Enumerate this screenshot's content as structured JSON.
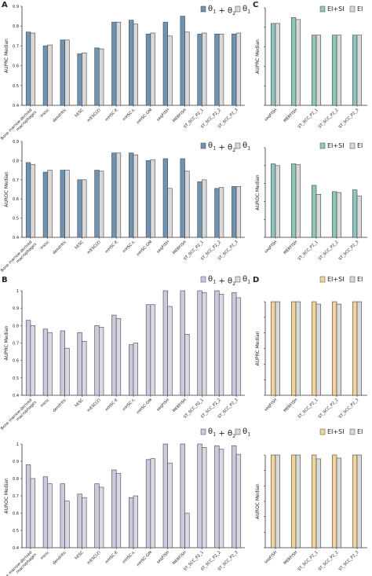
{
  "panel_labels": [
    "A",
    "B",
    "C",
    "D"
  ],
  "colors": {
    "A_dark": "#6e93b3",
    "A_light": "#d9d9d9",
    "B_dark": "#c9cade",
    "B_light": "#d9d9e6",
    "C_dark": "#8fc7bd",
    "C_light": "#d9d9d9",
    "D_dark": "#f2d49b",
    "D_light": "#d9d9d9"
  },
  "chart_data": [
    {
      "type": "bar",
      "panel": "A",
      "ylabel": "AUPRC  Median",
      "ylim": [
        0.4,
        0.9
      ],
      "yticks": [
        "0.4",
        "0.5",
        "0.6",
        "0.7",
        "0.8",
        "0.9"
      ],
      "categories": [
        "Bone marrow-derived macrophages",
        "mesc",
        "dendritic",
        "hESC",
        "mESC(2)",
        "mHSC-E",
        "mHSC-L",
        "mHSC-GM",
        "seqFISH",
        "MERFISH",
        "ST_SCC_P2_1",
        "ST_SCC_P2_2",
        "ST_SCC_P2_3"
      ],
      "series": [
        {
          "name": "θ1 + θ2",
          "values": [
            0.77,
            0.7,
            0.73,
            0.66,
            0.69,
            0.82,
            0.83,
            0.76,
            0.82,
            0.85,
            0.76,
            0.76,
            0.76
          ]
        },
        {
          "name": "θ1",
          "values": [
            0.765,
            0.705,
            0.73,
            0.665,
            0.685,
            0.82,
            0.81,
            0.765,
            0.75,
            0.77,
            0.765,
            0.76,
            0.765
          ]
        }
      ]
    },
    {
      "type": "bar",
      "panel": "A",
      "ylabel": "AUROC  Median",
      "ylim": [
        0.4,
        0.9
      ],
      "yticks": [
        "0.4",
        "0.5",
        "0.6",
        "0.7",
        "0.8",
        "0.9"
      ],
      "categories": [
        "Bone marrow-derived macrophages",
        "mesc",
        "dendritic",
        "hESC",
        "mESC(2)",
        "mHSC-E",
        "mHSC-L",
        "mHSC-GM",
        "seqFISH",
        "MERFISH",
        "ST_SCC_P2_1",
        "ST_SCC_P2_2",
        "ST_SCC_P2_3"
      ],
      "series": [
        {
          "name": "θ1 + θ2",
          "values": [
            0.79,
            0.74,
            0.75,
            0.7,
            0.75,
            0.84,
            0.84,
            0.8,
            0.81,
            0.81,
            0.69,
            0.655,
            0.665
          ]
        },
        {
          "name": "θ1",
          "values": [
            0.78,
            0.75,
            0.75,
            0.7,
            0.745,
            0.84,
            0.83,
            0.805,
            0.655,
            0.745,
            0.7,
            0.66,
            0.665
          ]
        }
      ]
    },
    {
      "type": "bar",
      "panel": "B",
      "ylabel": "AUPRC  Median",
      "ylim": [
        0.4,
        1.0
      ],
      "yticks": [
        "0.4",
        "0.5",
        "0.6",
        "0.7",
        "0.8",
        "0.9",
        "1"
      ],
      "categories": [
        "Bone marrow-derived macrophages",
        "mesc",
        "dendritic",
        "hESC",
        "mESC(2)",
        "mHSC-E",
        "mHSC-L",
        "mHSC-GM",
        "seqFISH",
        "MERFISH",
        "ST_SCC_P2_1",
        "ST_SCC_P2_2",
        "ST_SCC_P2_3"
      ],
      "series": [
        {
          "name": "θ1 + θ2",
          "values": [
            0.83,
            0.78,
            0.77,
            0.76,
            0.8,
            0.86,
            0.69,
            0.92,
            1.0,
            1.0,
            1.0,
            1.0,
            0.99
          ]
        },
        {
          "name": "θ1",
          "values": [
            0.8,
            0.76,
            0.67,
            0.71,
            0.79,
            0.84,
            0.7,
            0.92,
            0.91,
            0.75,
            0.99,
            0.98,
            0.96
          ]
        }
      ]
    },
    {
      "type": "bar",
      "panel": "B",
      "ylabel": "AUROC  Median",
      "ylim": [
        0.4,
        1.0
      ],
      "yticks": [
        "0.4",
        "0.5",
        "0.6",
        "0.7",
        "0.8",
        "0.9",
        "1"
      ],
      "categories": [
        "Bone marrow-derived macrophages",
        "mesc",
        "dendritic",
        "hESC",
        "mESC(2)",
        "mHSC-E",
        "mHSC-L",
        "mHSC-GM",
        "seqFISH",
        "MERFISH",
        "ST_SCC_P2_1",
        "ST_SCC_P2_2",
        "ST_SCC_P2_3"
      ],
      "series": [
        {
          "name": "θ1 + θ2",
          "values": [
            0.88,
            0.81,
            0.77,
            0.71,
            0.77,
            0.85,
            0.69,
            0.91,
            1.0,
            1.0,
            1.0,
            0.99,
            0.99
          ]
        },
        {
          "name": "θ1",
          "values": [
            0.8,
            0.77,
            0.67,
            0.69,
            0.75,
            0.83,
            0.7,
            0.915,
            0.89,
            0.6,
            0.98,
            0.97,
            0.94
          ]
        }
      ]
    },
    {
      "type": "bar",
      "panel": "C",
      "ylabel": "AUPRC  Median",
      "ylim": [
        0.4,
        0.9
      ],
      "categories": [
        "seqFISH",
        "MERFISH",
        "ST_SCC_P2_1",
        "ST_SCC_P2_2",
        "ST_SCC_P2_3"
      ],
      "series": [
        {
          "name": "EI+SI",
          "values": [
            0.82,
            0.85,
            0.76,
            0.76,
            0.76
          ]
        },
        {
          "name": "EI",
          "values": [
            0.82,
            0.84,
            0.76,
            0.76,
            0.76
          ]
        }
      ]
    },
    {
      "type": "bar",
      "panel": "C",
      "ylabel": "AUROC  Median",
      "ylim": [
        0.4,
        0.9
      ],
      "categories": [
        "seqFISH",
        "MERFISH",
        "ST_SCC_P2_1",
        "ST_SCC_P2_2",
        "ST_SCC_P2_3"
      ],
      "series": [
        {
          "name": "EI+SI",
          "values": [
            0.81,
            0.81,
            0.69,
            0.655,
            0.665
          ]
        },
        {
          "name": "EI",
          "values": [
            0.8,
            0.805,
            0.64,
            0.65,
            0.63
          ]
        }
      ]
    },
    {
      "type": "bar",
      "panel": "D",
      "ylabel": "AUPRC  Median",
      "ylim": [
        0.4,
        1.0
      ],
      "categories": [
        "seqFISH",
        "MERFISH",
        "ST_SCC_P2_1",
        "ST_SCC_P2_2",
        "ST_SCC_P2_3"
      ],
      "series": [
        {
          "name": "EI+SI",
          "values": [
            1.0,
            1.0,
            1.0,
            1.0,
            1.0
          ]
        },
        {
          "name": "EI",
          "values": [
            1.0,
            1.0,
            0.985,
            0.985,
            1.0
          ]
        }
      ]
    },
    {
      "type": "bar",
      "panel": "D",
      "ylabel": "AUROC  Median",
      "ylim": [
        0.4,
        1.0
      ],
      "categories": [
        "seqFISH",
        "MERFISH",
        "ST_SCC_P2_1",
        "ST_SCC_P2_2",
        "ST_SCC_P2_3"
      ],
      "series": [
        {
          "name": "EI+SI",
          "values": [
            1.0,
            1.0,
            1.0,
            1.0,
            1.0
          ]
        },
        {
          "name": "EI",
          "values": [
            1.0,
            1.0,
            0.975,
            0.98,
            1.0
          ]
        }
      ]
    }
  ]
}
